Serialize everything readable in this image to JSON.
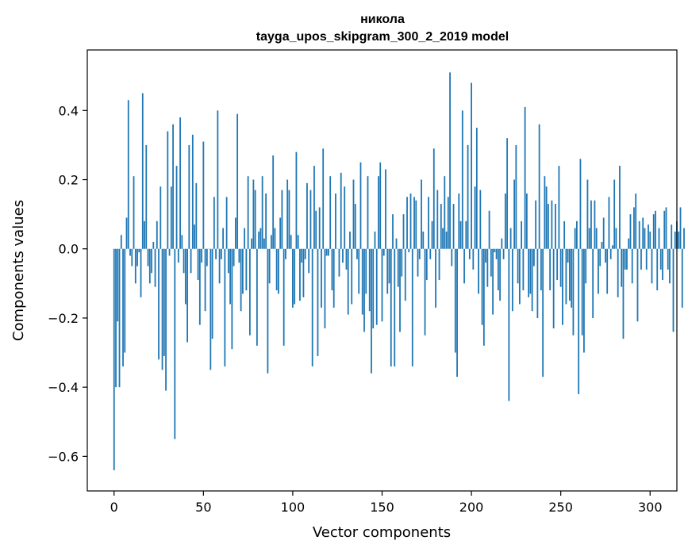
{
  "chart_data": {
    "type": "bar",
    "title_line1": "никола",
    "title_line2": "tayga_upos_skipgram_300_2_2019 model",
    "xlabel": "Vector components",
    "ylabel": "Components values",
    "xlim": [
      -15,
      315
    ],
    "ylim": [
      -0.7,
      0.575
    ],
    "xticks": [
      0,
      50,
      100,
      150,
      200,
      250,
      300
    ],
    "xtick_labels": [
      "0",
      "50",
      "100",
      "150",
      "200",
      "250",
      "300"
    ],
    "yticks": [
      -0.6,
      -0.4,
      -0.2,
      0.0,
      0.2,
      0.4
    ],
    "ytick_labels": [
      "−0.6",
      "−0.4",
      "−0.2",
      "0.0",
      "0.2",
      "0.4"
    ],
    "bar_color": "#1f77b4",
    "values": [
      -0.64,
      -0.4,
      -0.21,
      -0.4,
      0.04,
      -0.34,
      -0.3,
      0.09,
      0.43,
      -0.02,
      -0.05,
      0.21,
      -0.1,
      -0.05,
      -0.01,
      -0.14,
      0.45,
      0.08,
      0.3,
      -0.05,
      -0.1,
      -0.07,
      0.02,
      -0.11,
      0.08,
      -0.32,
      0.18,
      -0.35,
      -0.31,
      -0.41,
      0.34,
      -0.02,
      0.18,
      0.36,
      -0.55,
      0.24,
      -0.04,
      0.38,
      0.04,
      -0.07,
      -0.16,
      -0.27,
      0.3,
      -0.07,
      0.33,
      0.07,
      0.19,
      -0.09,
      -0.22,
      -0.04,
      0.31,
      -0.18,
      -0.05,
      0.0,
      -0.35,
      -0.26,
      0.15,
      -0.03,
      0.4,
      -0.1,
      -0.03,
      0.06,
      -0.34,
      0.15,
      -0.07,
      -0.16,
      -0.29,
      -0.05,
      0.09,
      0.39,
      -0.04,
      -0.18,
      -0.13,
      0.06,
      -0.12,
      0.21,
      -0.25,
      0.03,
      0.2,
      0.17,
      -0.28,
      0.05,
      0.06,
      0.21,
      0.03,
      0.16,
      -0.36,
      -0.1,
      0.04,
      0.27,
      0.06,
      -0.12,
      -0.13,
      0.09,
      0.17,
      -0.28,
      -0.03,
      0.2,
      0.17,
      0.04,
      -0.17,
      -0.16,
      0.28,
      0.04,
      -0.15,
      -0.04,
      -0.14,
      -0.03,
      0.19,
      -0.07,
      0.17,
      -0.34,
      0.24,
      0.11,
      -0.31,
      0.12,
      -0.17,
      0.29,
      -0.23,
      -0.02,
      -0.02,
      0.21,
      -0.12,
      -0.17,
      0.16,
      0.0,
      -0.08,
      0.22,
      -0.04,
      0.18,
      -0.06,
      -0.19,
      0.05,
      -0.16,
      0.2,
      0.13,
      -0.03,
      -0.13,
      0.25,
      -0.19,
      -0.24,
      -0.13,
      0.21,
      -0.18,
      -0.36,
      -0.23,
      0.05,
      -0.22,
      0.21,
      0.25,
      -0.21,
      -0.02,
      0.23,
      -0.13,
      -0.1,
      -0.34,
      0.1,
      -0.34,
      0.03,
      -0.11,
      -0.24,
      -0.08,
      0.1,
      -0.15,
      0.15,
      -0.01,
      0.16,
      -0.34,
      0.15,
      0.14,
      -0.08,
      -0.03,
      0.2,
      0.05,
      -0.25,
      -0.09,
      0.15,
      -0.03,
      0.08,
      0.29,
      -0.17,
      0.17,
      -0.09,
      0.13,
      0.06,
      0.21,
      0.05,
      0.15,
      0.51,
      -0.05,
      0.13,
      -0.3,
      -0.37,
      0.16,
      0.08,
      0.4,
      -0.1,
      0.08,
      0.3,
      -0.03,
      0.48,
      -0.06,
      0.18,
      0.35,
      -0.13,
      0.17,
      -0.22,
      -0.28,
      -0.04,
      -0.11,
      0.11,
      -0.08,
      -0.19,
      -0.01,
      -0.03,
      -0.12,
      -0.15,
      0.03,
      -0.03,
      0.16,
      0.32,
      -0.44,
      0.06,
      -0.18,
      0.2,
      0.3,
      -0.1,
      -0.16,
      0.08,
      -0.12,
      0.41,
      0.16,
      -0.14,
      -0.13,
      -0.18,
      -0.05,
      0.14,
      -0.2,
      0.36,
      -0.12,
      -0.37,
      0.21,
      0.18,
      0.13,
      -0.12,
      0.14,
      -0.23,
      0.13,
      -0.09,
      0.24,
      -0.11,
      -0.22,
      0.08,
      -0.16,
      -0.04,
      -0.15,
      -0.17,
      -0.25,
      0.06,
      0.08,
      -0.42,
      0.26,
      -0.25,
      -0.3,
      -0.1,
      0.2,
      0.06,
      0.14,
      -0.2,
      0.14,
      0.06,
      -0.13,
      -0.05,
      0.02,
      0.09,
      -0.04,
      -0.13,
      0.15,
      -0.03,
      0.01,
      0.2,
      0.06,
      -0.14,
      0.24,
      -0.11,
      -0.26,
      -0.06,
      -0.06,
      0.03,
      0.1,
      -0.1,
      0.12,
      0.16,
      -0.21,
      0.08,
      -0.06,
      0.09,
      0.06,
      -0.06,
      0.07,
      0.05,
      -0.1,
      0.1,
      0.11,
      -0.12,
      0.06,
      -0.06,
      -0.09,
      0.11,
      0.12,
      -0.06,
      -0.1,
      0.07,
      -0.24,
      0.05,
      0.08,
      0.05,
      0.12,
      -0.17,
      0.06
    ]
  }
}
